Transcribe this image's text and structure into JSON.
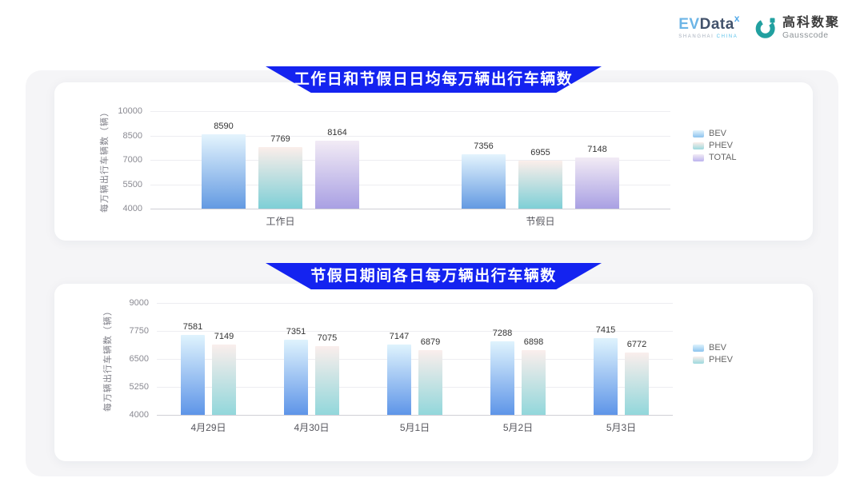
{
  "header": {
    "evdata_logo": {
      "ev": "EV",
      "data": "Data",
      "sup": "x",
      "subtext_left": "SHANGHAI",
      "subtext_right": "CHINA"
    },
    "gausscode_logo": {
      "name_cn": "高科数聚",
      "name_en": "Gausscode",
      "brand_color": "#21a0a0"
    }
  },
  "colors": {
    "banner_blue": "#1423f0",
    "card_background": "#ffffff",
    "board_background": "#f5f5f7"
  },
  "chart_data": [
    {
      "type": "bar",
      "title": "工作日和节假日日均每万辆出行车辆数",
      "ylabel": "每万辆出行车辆数（辆）",
      "ylim": [
        4000,
        10000
      ],
      "yticks": [
        4000,
        5500,
        7000,
        8500,
        10000
      ],
      "categories": [
        "工作日",
        "节假日"
      ],
      "grid": true,
      "legend_position": "right",
      "series": [
        {
          "name": "BEV",
          "values": [
            8590,
            7356
          ],
          "color_top": "#e4f4fd",
          "color_bottom": "#639ae2",
          "legend_color": "#8cc3ee"
        },
        {
          "name": "PHEV",
          "values": [
            7769,
            6955
          ],
          "color_top": "#fbeeea",
          "color_bottom": "#7ecfd6",
          "legend_color": "#9cd9de"
        },
        {
          "name": "TOTAL",
          "values": [
            8164,
            7148
          ],
          "color_top": "#f2ebf5",
          "color_bottom": "#a9a0e3",
          "legend_color": "#bcb3ee"
        }
      ]
    },
    {
      "type": "bar",
      "title": "节假日期间各日每万辆出行车辆数",
      "ylabel": "每万辆出行车辆数（辆）",
      "ylim": [
        4000,
        9000
      ],
      "yticks": [
        4000,
        5250,
        6500,
        7750,
        9000
      ],
      "categories": [
        "4月29日",
        "4月30日",
        "5月1日",
        "5月2日",
        "5月3日"
      ],
      "grid": true,
      "legend_position": "right",
      "series": [
        {
          "name": "BEV",
          "values": [
            7581,
            7351,
            7147,
            7288,
            7415
          ],
          "color_top": "#dff3fd",
          "color_bottom": "#5e95e8",
          "legend_color": "#8cc3ee"
        },
        {
          "name": "PHEV",
          "values": [
            7149,
            7075,
            6879,
            6898,
            6772
          ],
          "color_top": "#faeeec",
          "color_bottom": "#92d7db",
          "legend_color": "#9cd9de"
        }
      ]
    }
  ]
}
